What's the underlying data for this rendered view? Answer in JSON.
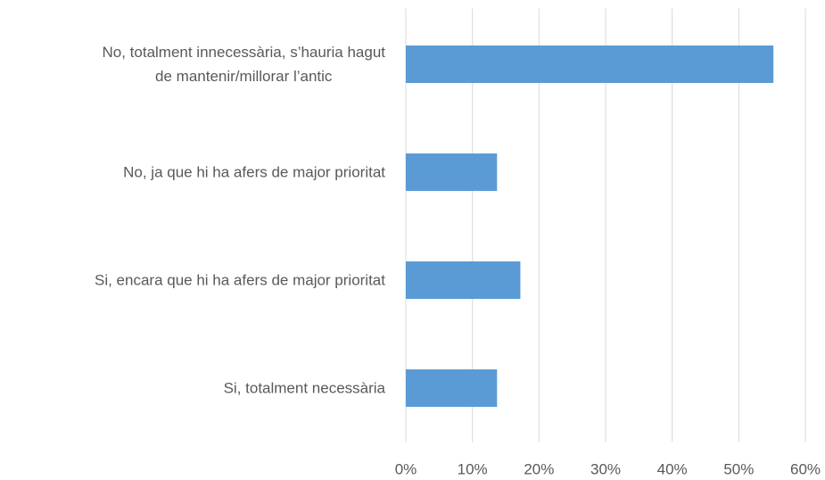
{
  "chart_data": {
    "type": "hbar",
    "categories": [
      "No, totalment innecessària, s’hauria  hagut\nde  mantenir/millorar l’antic",
      "No, ja que hi ha afers de major prioritat",
      "Si, encara que hi ha afers de major prioritat",
      "Si, totalment necessària"
    ],
    "values": [
      55.2,
      13.7,
      17.2,
      13.7
    ],
    "color": "#5b9bd5",
    "xlim": [
      0,
      60
    ],
    "xticks": [
      {
        "value": 0,
        "label": "0%"
      },
      {
        "value": 10,
        "label": "10%"
      },
      {
        "value": 20,
        "label": "20%"
      },
      {
        "value": 30,
        "label": "30%"
      },
      {
        "value": 40,
        "label": "40%"
      },
      {
        "value": 50,
        "label": "50%"
      },
      {
        "value": 60,
        "label": "60%"
      }
    ],
    "grid": true
  }
}
